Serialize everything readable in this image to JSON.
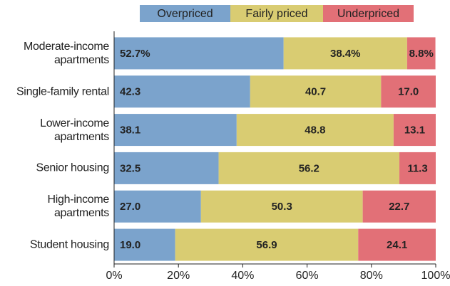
{
  "chart_data": {
    "type": "stacked-bar-horizontal",
    "categories": [
      "Moderate-income\napartments",
      "Single-family rental",
      "Lower-income\napartments",
      "Senior housing",
      "High-income\napartments",
      "Student housing"
    ],
    "series": [
      {
        "name": "Overpriced",
        "color": "#7ba3cc",
        "values": [
          52.7,
          42.3,
          38.1,
          32.5,
          27.0,
          19.0
        ],
        "value_labels": [
          "52.7%",
          "42.3",
          "38.1",
          "32.5",
          "27.0",
          "19.0"
        ]
      },
      {
        "name": "Fairly priced",
        "color": "#d9cc72",
        "values": [
          38.4,
          40.7,
          48.8,
          56.2,
          50.3,
          56.9
        ],
        "value_labels": [
          "38.4%",
          "40.7",
          "48.8",
          "56.2",
          "50.3",
          "56.9"
        ]
      },
      {
        "name": "Underpriced",
        "color": "#e27077",
        "values": [
          8.8,
          17.0,
          13.1,
          11.3,
          22.7,
          24.1
        ],
        "value_labels": [
          "8.8%",
          "17.0",
          "13.1",
          "11.3",
          "22.7",
          "24.1"
        ]
      }
    ],
    "xlim": [
      0,
      100
    ],
    "xticks": [
      {
        "value": 0,
        "label": "0%"
      },
      {
        "value": 20,
        "label": "20%"
      },
      {
        "value": 40,
        "label": "40%"
      },
      {
        "value": 60,
        "label": "60%"
      },
      {
        "value": 80,
        "label": "80%"
      },
      {
        "value": 100,
        "label": "100%"
      }
    ],
    "legend": "top"
  }
}
